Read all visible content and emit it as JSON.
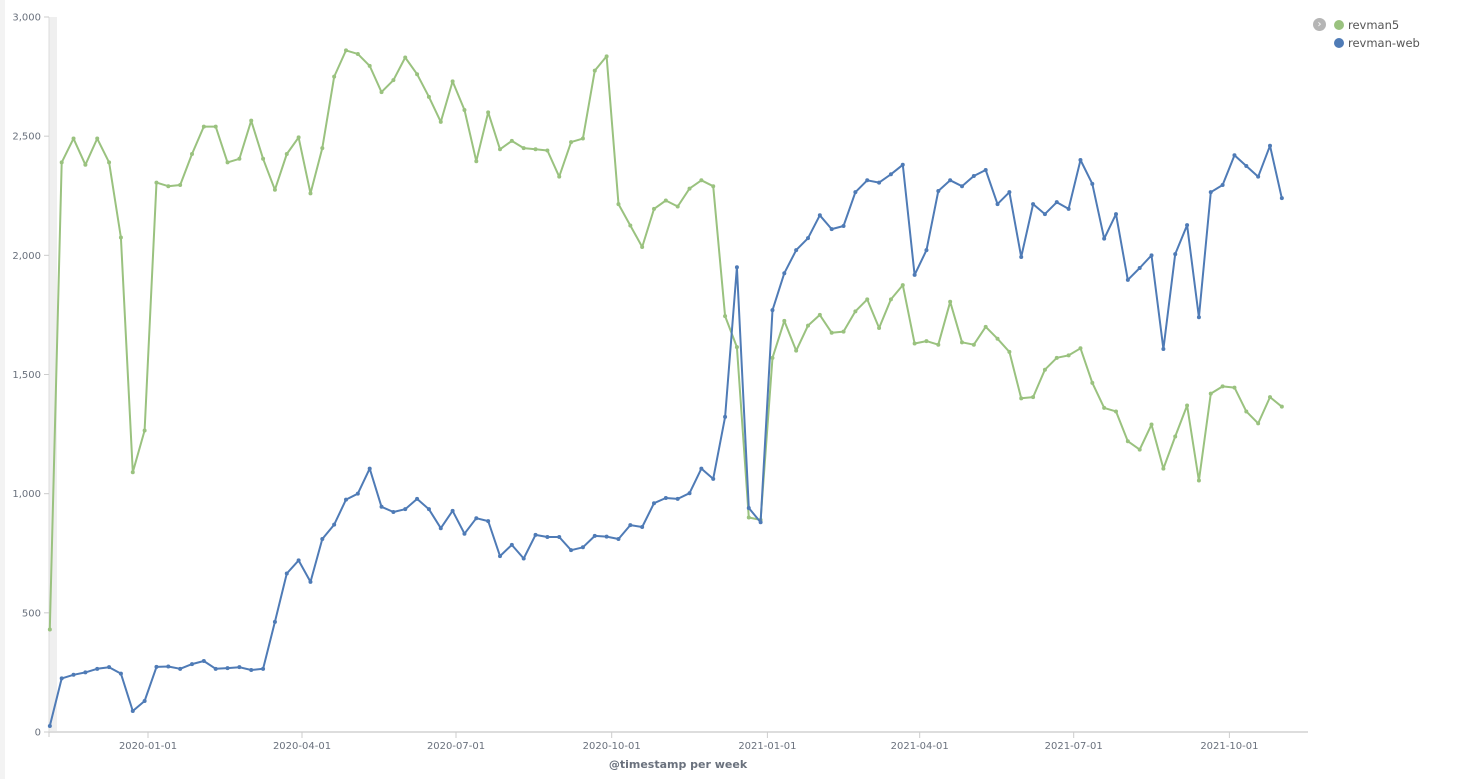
{
  "chart_data": {
    "type": "line",
    "xlabel": "@timestamp per week",
    "ylabel": "",
    "ylim": [
      0,
      3000
    ],
    "y_ticks": [
      "0",
      "500",
      "1,000",
      "1,500",
      "2,000",
      "2,500",
      "3,000"
    ],
    "x_ticks": [
      "2020-01-01",
      "2020-04-01",
      "2020-07-01",
      "2020-10-01",
      "2021-01-01",
      "2021-04-01",
      "2021-07-01",
      "2021-10-01"
    ],
    "legend_position": "top-right",
    "grid": false,
    "x": [
      "2019-11-04",
      "2019-11-11",
      "2019-11-18",
      "2019-11-25",
      "2019-12-02",
      "2019-12-09",
      "2019-12-16",
      "2019-12-23",
      "2019-12-30",
      "2020-01-06",
      "2020-01-13",
      "2020-01-20",
      "2020-01-27",
      "2020-02-03",
      "2020-02-10",
      "2020-02-17",
      "2020-02-24",
      "2020-03-02",
      "2020-03-09",
      "2020-03-16",
      "2020-03-23",
      "2020-03-30",
      "2020-04-06",
      "2020-04-13",
      "2020-04-20",
      "2020-04-27",
      "2020-05-04",
      "2020-05-11",
      "2020-05-18",
      "2020-05-25",
      "2020-06-01",
      "2020-06-08",
      "2020-06-15",
      "2020-06-22",
      "2020-06-29",
      "2020-07-06",
      "2020-07-13",
      "2020-07-20",
      "2020-07-27",
      "2020-08-03",
      "2020-08-10",
      "2020-08-17",
      "2020-08-24",
      "2020-08-31",
      "2020-09-07",
      "2020-09-14",
      "2020-09-21",
      "2020-09-28",
      "2020-10-05",
      "2020-10-12",
      "2020-10-19",
      "2020-10-26",
      "2020-11-02",
      "2020-11-09",
      "2020-11-16",
      "2020-11-23",
      "2020-11-30",
      "2020-12-07",
      "2020-12-14",
      "2020-12-21",
      "2020-12-28",
      "2021-01-04",
      "2021-01-11",
      "2021-01-18",
      "2021-01-25",
      "2021-02-01",
      "2021-02-08",
      "2021-02-15",
      "2021-02-22",
      "2021-03-01",
      "2021-03-08",
      "2021-03-15",
      "2021-03-22",
      "2021-03-29",
      "2021-04-05",
      "2021-04-12",
      "2021-04-19",
      "2021-04-26",
      "2021-05-03",
      "2021-05-10",
      "2021-05-17",
      "2021-05-24",
      "2021-05-31",
      "2021-06-07",
      "2021-06-14",
      "2021-06-21",
      "2021-06-28",
      "2021-07-05",
      "2021-07-12",
      "2021-07-19",
      "2021-07-26",
      "2021-08-02",
      "2021-08-09",
      "2021-08-16",
      "2021-08-23",
      "2021-08-30",
      "2021-09-06",
      "2021-09-13",
      "2021-09-20",
      "2021-09-27",
      "2021-10-04",
      "2021-10-11",
      "2021-10-18",
      "2021-10-25",
      "2021-11-01"
    ],
    "series": [
      {
        "name": "revman5",
        "color": "#9ac27f",
        "values": [
          430,
          2390,
          2490,
          2380,
          2490,
          2390,
          2075,
          1090,
          1265,
          2305,
          2290,
          2295,
          2425,
          2540,
          2540,
          2390,
          2405,
          2565,
          2405,
          2275,
          2425,
          2495,
          2260,
          2450,
          2750,
          2860,
          2845,
          2795,
          2685,
          2735,
          2830,
          2760,
          2665,
          2560,
          2730,
          2610,
          2395,
          2600,
          2445,
          2480,
          2450,
          2445,
          2440,
          2330,
          2475,
          2490,
          2775,
          2835,
          2215,
          2125,
          2035,
          2195,
          2230,
          2205,
          2280,
          2315,
          2290,
          1745,
          1615,
          900,
          890,
          1570,
          1725,
          1600,
          1705,
          1750,
          1675,
          1680,
          1765,
          1815,
          1695,
          1815,
          1875,
          1630,
          1640,
          1625,
          1805,
          1635,
          1625,
          1700,
          1650,
          1595,
          1400,
          1405,
          1520,
          1570,
          1580,
          1610,
          1465,
          1360,
          1345,
          1220,
          1185,
          1290,
          1105,
          1240,
          1370,
          1055,
          1420,
          1450,
          1445,
          1345,
          1295,
          1405,
          1365
        ]
      },
      {
        "name": "revman-web",
        "color": "#4f7bb6",
        "values": [
          25,
          225,
          240,
          250,
          265,
          272,
          245,
          88,
          130,
          273,
          275,
          265,
          285,
          298,
          265,
          268,
          272,
          260,
          265,
          462,
          665,
          720,
          630,
          810,
          870,
          975,
          1000,
          1105,
          945,
          923,
          935,
          978,
          935,
          855,
          928,
          832,
          897,
          885,
          738,
          785,
          728,
          827,
          818,
          818,
          763,
          775,
          823,
          820,
          810,
          868,
          860,
          960,
          982,
          978,
          1002,
          1105,
          1062,
          1322,
          1950,
          940,
          880,
          1770,
          1925,
          2022,
          2072,
          2168,
          2110,
          2123,
          2265,
          2315,
          2305,
          2340,
          2380,
          1918,
          2022,
          2270,
          2315,
          2290,
          2333,
          2358,
          2215,
          2265,
          1993,
          2215,
          2173,
          2223,
          2195,
          2400,
          2300,
          2070,
          2173,
          1897,
          1947,
          2000,
          1607,
          2005,
          2127,
          1740,
          2265,
          2295,
          2420,
          2375,
          2330,
          2460,
          2240
        ]
      }
    ]
  },
  "legend": {
    "toggle_icon": "chevron-right-circle-icon",
    "items": [
      {
        "label": "revman5",
        "color": "#9ac27f"
      },
      {
        "label": "revman-web",
        "color": "#4f7bb6"
      }
    ]
  }
}
